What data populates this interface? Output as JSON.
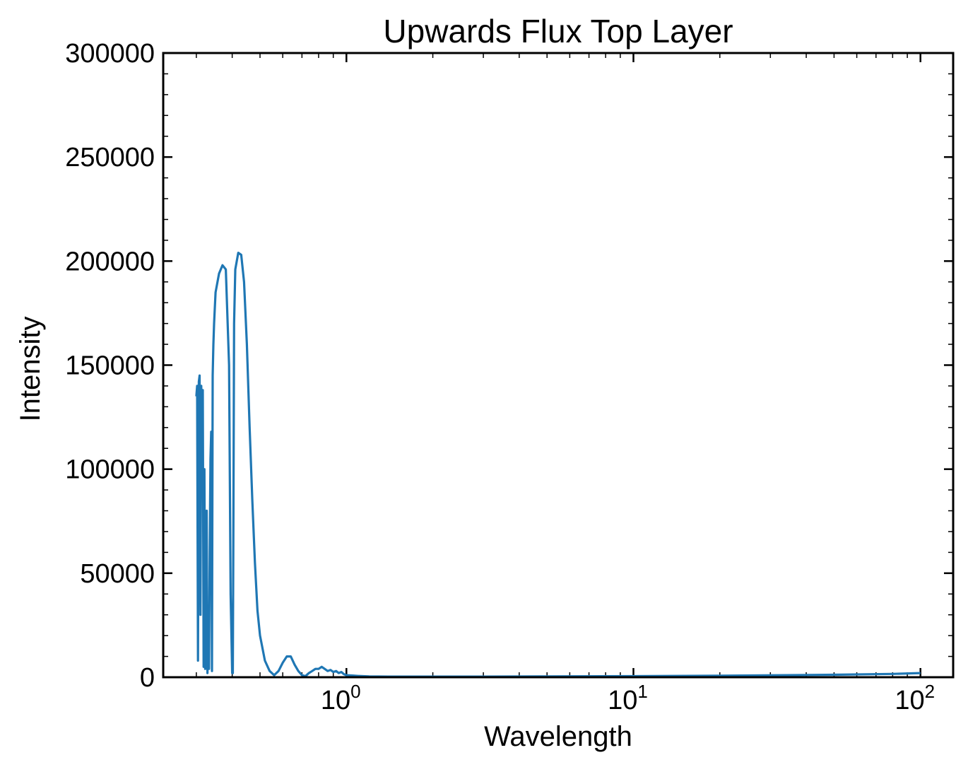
{
  "chart_data": {
    "type": "line",
    "title": "Upwards Flux Top Layer",
    "xlabel": "Wavelength",
    "ylabel": "Intensity",
    "xscale": "log",
    "xlim": [
      0.23,
      130
    ],
    "ylim": [
      0,
      300000
    ],
    "grid": false,
    "legend": "none",
    "color": "#1f77b4",
    "y_ticks": [
      "0",
      "50000",
      "100000",
      "150000",
      "200000",
      "250000",
      "300000"
    ],
    "x_ticks": [
      {
        "base": "10",
        "exp": "0",
        "value": 1
      },
      {
        "base": "10",
        "exp": "1",
        "value": 10
      },
      {
        "base": "10",
        "exp": "2",
        "value": 100
      }
    ],
    "series": [
      {
        "x": [
          0.3,
          0.302,
          0.304,
          0.306,
          0.308,
          0.31,
          0.312,
          0.314,
          0.316,
          0.318,
          0.32,
          0.322,
          0.324,
          0.326,
          0.328,
          0.33,
          0.332,
          0.334,
          0.336,
          0.338,
          0.34,
          0.342,
          0.344,
          0.346,
          0.348,
          0.35,
          0.36,
          0.37,
          0.38,
          0.39,
          0.395,
          0.4,
          0.402,
          0.404,
          0.406,
          0.41,
          0.42,
          0.43,
          0.44,
          0.45,
          0.46,
          0.47,
          0.48,
          0.49,
          0.5,
          0.52,
          0.54,
          0.56,
          0.58,
          0.6,
          0.62,
          0.64,
          0.66,
          0.68,
          0.7,
          0.72,
          0.74,
          0.76,
          0.78,
          0.8,
          0.82,
          0.84,
          0.86,
          0.88,
          0.9,
          0.92,
          0.94,
          0.96,
          0.98,
          1.0,
          1.05,
          1.1,
          1.2,
          1.4,
          1.7,
          2.0,
          3.0,
          5.0,
          10,
          20,
          50,
          80,
          100
        ],
        "y": [
          135000,
          140000,
          8000,
          142000,
          145000,
          30000,
          140000,
          120000,
          138000,
          5000,
          100000,
          4000,
          60000,
          80000,
          2000,
          20000,
          4000,
          60000,
          105000,
          118000,
          3000,
          145000,
          160000,
          170000,
          178000,
          185000,
          194000,
          198000,
          196000,
          150000,
          40000,
          2000,
          2000,
          80000,
          170000,
          196000,
          204000,
          203000,
          190000,
          160000,
          120000,
          85000,
          55000,
          32000,
          20000,
          8000,
          3000,
          1000,
          3000,
          7000,
          10000,
          10000,
          6000,
          3000,
          1000,
          500,
          2000,
          3000,
          4000,
          4000,
          5000,
          4000,
          3000,
          3500,
          2500,
          3000,
          2000,
          2500,
          1500,
          1000,
          800,
          600,
          400,
          300,
          300,
          300,
          300,
          400,
          500,
          700,
          1200,
          1600,
          2000
        ]
      }
    ]
  }
}
